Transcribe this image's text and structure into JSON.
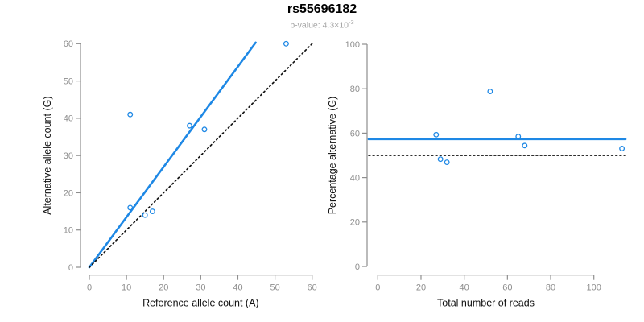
{
  "figure": {
    "title": "rs55696182",
    "p_value_label": "p-value: 4.3×10",
    "p_value_exponent": "-3"
  },
  "colors": {
    "accent_blue": "#1E88E5",
    "axis_gray": "#8E8E8E",
    "tick_label_gray": "#8E8E8E",
    "axis_title_black": "#111111",
    "dotted_black": "#111111"
  },
  "chart_data": [
    {
      "type": "scatter",
      "name": "allele-counts",
      "xlabel": "Reference allele count (A)",
      "ylabel": "Alternative allele count (G)",
      "xlim": [
        0,
        62
      ],
      "ylim": [
        0,
        62
      ],
      "xticks": [
        0,
        10,
        20,
        30,
        40,
        50,
        60
      ],
      "yticks": [
        0,
        10,
        20,
        30,
        40,
        50,
        60
      ],
      "grid": false,
      "legend": null,
      "points": [
        [
          11,
          41
        ],
        [
          27,
          38
        ],
        [
          31,
          37
        ],
        [
          53,
          60
        ],
        [
          11,
          16
        ],
        [
          15,
          14
        ],
        [
          17,
          15
        ]
      ],
      "lines": [
        {
          "kind": "fit-line",
          "style": "solid",
          "color": "blue",
          "slope": 1.34,
          "intercept": 0,
          "x1": 0,
          "y1": 0,
          "x2": 44.8,
          "y2": 60.3
        },
        {
          "kind": "identity-line",
          "style": "dotted",
          "color": "black",
          "x1": 0,
          "y1": 0,
          "x2": 60,
          "y2": 60
        }
      ]
    },
    {
      "type": "scatter",
      "name": "percentage-vs-depth",
      "xlabel": "Total number of reads",
      "ylabel": "Percentage alternative (G)",
      "xlim": [
        0,
        115
      ],
      "ylim": [
        0,
        100
      ],
      "xticks": [
        0,
        20,
        40,
        60,
        80,
        100
      ],
      "yticks": [
        0,
        20,
        40,
        60,
        80,
        100
      ],
      "grid": false,
      "legend": null,
      "points": [
        [
          52,
          78.8
        ],
        [
          65,
          58.5
        ],
        [
          68,
          54.4
        ],
        [
          113,
          53.1
        ],
        [
          27,
          59.3
        ],
        [
          29,
          48.3
        ],
        [
          32,
          46.9
        ]
      ],
      "lines": [
        {
          "kind": "mean-percentage-line",
          "style": "solid",
          "color": "blue",
          "y": 57.3
        },
        {
          "kind": "expected-percentage-line",
          "style": "dotted",
          "color": "black",
          "y": 50
        }
      ]
    }
  ]
}
